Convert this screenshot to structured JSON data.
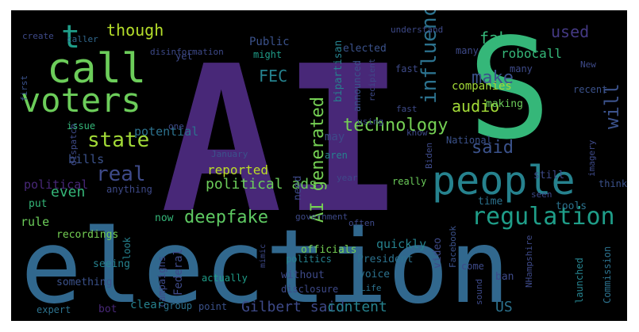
{
  "image_title": "",
  "palette": {
    "background": "#000000",
    "frame": "#ffffff",
    "purple": "#482878",
    "teal": "#26828e",
    "blue": "#31688e",
    "green": "#6ccd5a",
    "lime": "#b5de2b",
    "seagreen": "#35b779",
    "slate": "#3e4a89",
    "dark": "#443983"
  },
  "words": [
    {
      "text": "AI",
      "color": "#482878"
    },
    {
      "text": "S",
      "color": "#35b779"
    },
    {
      "text": "election",
      "color": "#31688e"
    },
    {
      "text": "people",
      "color": "#26828e"
    },
    {
      "text": "call",
      "color": "#6ccd5a"
    },
    {
      "text": "voters",
      "color": "#6ccd5a"
    },
    {
      "text": "t",
      "color": "#1f9e89"
    },
    {
      "text": "though",
      "color": "#b5de2b"
    },
    {
      "text": "state",
      "color": "#a2da37"
    },
    {
      "text": "AI generated",
      "color": "#75d054"
    },
    {
      "text": "regulation",
      "color": "#1f9e89"
    },
    {
      "text": "technology",
      "color": "#75d054"
    },
    {
      "text": "deepfake",
      "color": "#5ec962"
    },
    {
      "text": "real",
      "color": "#3e4a89"
    },
    {
      "text": "said",
      "color": "#3b528b"
    },
    {
      "text": "make",
      "color": "#3b528b"
    },
    {
      "text": "fake",
      "color": "#35b779"
    },
    {
      "text": "used",
      "color": "#443983"
    },
    {
      "text": "audio",
      "color": "#a2da37"
    },
    {
      "text": "use",
      "color": "#2c728e"
    },
    {
      "text": "place",
      "color": "#26828e"
    },
    {
      "text": "Gilbert said",
      "color": "#3e4a89"
    },
    {
      "text": "content",
      "color": "#26828e"
    },
    {
      "text": "influence",
      "color": "#2c728e"
    },
    {
      "text": "will",
      "color": "#3b528b"
    },
    {
      "text": "US",
      "color": "#2c728e"
    },
    {
      "text": "even",
      "color": "#35b779"
    },
    {
      "text": "FEC",
      "color": "#26828e"
    },
    {
      "text": "political ads",
      "color": "#6ccd5a"
    },
    {
      "text": "reported",
      "color": "#bddf26"
    },
    {
      "text": "bills",
      "color": "#3b528b"
    },
    {
      "text": "companies",
      "color": "#a2da37"
    },
    {
      "text": "robocall",
      "color": "#35b779"
    },
    {
      "text": "rule",
      "color": "#6ccd5a"
    },
    {
      "text": "recordings",
      "color": "#75d054"
    },
    {
      "text": "political",
      "color": "#482878"
    },
    {
      "text": "put",
      "color": "#35b779"
    },
    {
      "text": "actually",
      "color": "#1f9e89"
    },
    {
      "text": "potential",
      "color": "#2c728e"
    },
    {
      "text": "issue",
      "color": "#35b779"
    },
    {
      "text": "first",
      "color": "#3b528b"
    },
    {
      "text": "caller",
      "color": "#31688e"
    },
    {
      "text": "create",
      "color": "#3e4a89"
    },
    {
      "text": "Public",
      "color": "#3b528b"
    },
    {
      "text": "disinformation",
      "color": "#3e4a89"
    },
    {
      "text": "might",
      "color": "#1f9e89"
    },
    {
      "text": "need",
      "color": "#3e4a89"
    },
    {
      "text": "may",
      "color": "#3e4a89"
    },
    {
      "text": "bipartisan",
      "color": "#26828e"
    },
    {
      "text": "elected",
      "color": "#3b528b"
    },
    {
      "text": "announced",
      "color": "#3b528b"
    },
    {
      "text": "using",
      "color": "#3e4a89"
    },
    {
      "text": "fast",
      "color": "#3e4a89"
    },
    {
      "text": "many",
      "color": "#3e4a89"
    },
    {
      "text": "making",
      "color": "#6ccd5a"
    },
    {
      "text": "still",
      "color": "#3e4a89"
    },
    {
      "text": "think",
      "color": "#3b528b"
    },
    {
      "text": "tools",
      "color": "#2c728e"
    },
    {
      "text": "time",
      "color": "#2c728e"
    },
    {
      "text": "imagery",
      "color": "#3e4a89"
    },
    {
      "text": "National",
      "color": "#3b528b"
    },
    {
      "text": "Biden",
      "color": "#3e4a89"
    },
    {
      "text": "recent",
      "color": "#3b528b"
    },
    {
      "text": "New",
      "color": "#3e4a89"
    },
    {
      "text": "really",
      "color": "#6ccd5a"
    },
    {
      "text": "year",
      "color": "#3e4a89"
    },
    {
      "text": "aren",
      "color": "#26828e"
    },
    {
      "text": "quickly",
      "color": "#26828e"
    },
    {
      "text": "officials",
      "color": "#75d054"
    },
    {
      "text": "video",
      "color": "#3e4a89"
    },
    {
      "text": "Facebook",
      "color": "#3b528b"
    },
    {
      "text": "Federal",
      "color": "#3e4a89"
    },
    {
      "text": "campaigns",
      "color": "#3e4a89"
    },
    {
      "text": "now",
      "color": "#35b779"
    },
    {
      "text": "look",
      "color": "#26828e"
    },
    {
      "text": "seeing",
      "color": "#26828e"
    },
    {
      "text": "something",
      "color": "#3b528b"
    },
    {
      "text": "expert",
      "color": "#2c728e"
    },
    {
      "text": "bot",
      "color": "#482878"
    },
    {
      "text": "clear",
      "color": "#26828e"
    },
    {
      "text": "group",
      "color": "#2c728e"
    },
    {
      "text": "point",
      "color": "#3b528b"
    },
    {
      "text": "politics",
      "color": "#26828e"
    },
    {
      "text": "without",
      "color": "#3e4a89"
    },
    {
      "text": "disclosure",
      "color": "#3e4a89"
    },
    {
      "text": "President",
      "color": "#2c728e"
    },
    {
      "text": "voice",
      "color": "#2c728e"
    },
    {
      "text": "Life",
      "color": "#2c728e"
    },
    {
      "text": "ban",
      "color": "#3e4a89"
    },
    {
      "text": "come",
      "color": "#3e4a89"
    },
    {
      "text": "sound",
      "color": "#3e4a89"
    },
    {
      "text": "NHampshire",
      "color": "#3e4a89"
    },
    {
      "text": "launched",
      "color": "#26828e"
    },
    {
      "text": "Commission",
      "color": "#2c728e"
    },
    {
      "text": "January",
      "color": "#3b528b"
    },
    {
      "text": "anything",
      "color": "#3e4a89"
    },
    {
      "text": "yet",
      "color": "#3e4a89"
    },
    {
      "text": "understand",
      "color": "#3e4a89"
    },
    {
      "text": "often",
      "color": "#3e4a89"
    },
    {
      "text": "seen",
      "color": "#3e4a89"
    },
    {
      "text": "dispatch",
      "color": "#3e4a89"
    },
    {
      "text": "government",
      "color": "#3e4a89"
    },
    {
      "text": "one",
      "color": "#3e4a89"
    },
    {
      "text": "know",
      "color": "#3e4a89"
    },
    {
      "text": "mimic",
      "color": "#3e4a89"
    },
    {
      "text": "recipient",
      "color": "#3e4a89"
    }
  ]
}
